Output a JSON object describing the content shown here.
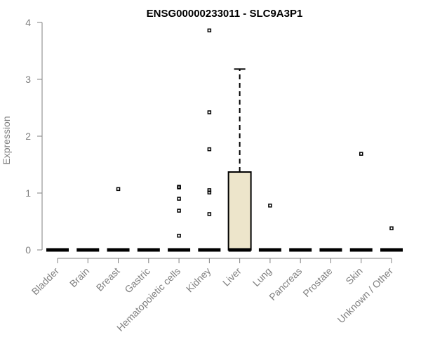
{
  "chart_data": {
    "type": "boxplot",
    "title": "ENSG00000233011 - SLC9A3P1",
    "ylabel": "Expression",
    "xlabel": "",
    "ylim": [
      0,
      4
    ],
    "yticks": [
      0,
      1,
      2,
      3,
      4
    ],
    "grid": false,
    "colors": {
      "box_fill": "#ede5cb",
      "line": "#000000",
      "axis": "#808080"
    },
    "categories": [
      "Bladder",
      "Brain",
      "Breast",
      "Gastric",
      "Hematopoietic cells",
      "Kidney",
      "Liver",
      "Lung",
      "Pancreas",
      "Prostate",
      "Skin",
      "Unknown / Other"
    ],
    "boxes": [
      {
        "category": "Bladder",
        "min": 0,
        "q1": 0,
        "median": 0,
        "q3": 0,
        "max": 0,
        "outliers": []
      },
      {
        "category": "Brain",
        "min": 0,
        "q1": 0,
        "median": 0,
        "q3": 0,
        "max": 0,
        "outliers": []
      },
      {
        "category": "Breast",
        "min": 0,
        "q1": 0,
        "median": 0,
        "q3": 0,
        "max": 0,
        "outliers": [
          1.07
        ]
      },
      {
        "category": "Gastric",
        "min": 0,
        "q1": 0,
        "median": 0,
        "q3": 0,
        "max": 0,
        "outliers": []
      },
      {
        "category": "Hematopoietic cells",
        "min": 0,
        "q1": 0,
        "median": 0,
        "q3": 0,
        "max": 0,
        "outliers": [
          1.1,
          1.11,
          0.9,
          0.69,
          0.25
        ]
      },
      {
        "category": "Kidney",
        "min": 0,
        "q1": 0,
        "median": 0,
        "q3": 0,
        "max": 0,
        "outliers": [
          3.86,
          2.42,
          1.77,
          1.05,
          1.01,
          0.63
        ]
      },
      {
        "category": "Liver",
        "min": 0,
        "q1": 0,
        "median": 0,
        "q3": 1.37,
        "max": 3.18,
        "outliers": []
      },
      {
        "category": "Lung",
        "min": 0,
        "q1": 0,
        "median": 0,
        "q3": 0,
        "max": 0,
        "outliers": [
          0.78
        ]
      },
      {
        "category": "Pancreas",
        "min": 0,
        "q1": 0,
        "median": 0,
        "q3": 0,
        "max": 0,
        "outliers": []
      },
      {
        "category": "Prostate",
        "min": 0,
        "q1": 0,
        "median": 0,
        "q3": 0,
        "max": 0,
        "outliers": []
      },
      {
        "category": "Skin",
        "min": 0,
        "q1": 0,
        "median": 0,
        "q3": 0,
        "max": 0,
        "outliers": [
          1.69
        ]
      },
      {
        "category": "Unknown / Other",
        "min": 0,
        "q1": 0,
        "median": 0,
        "q3": 0,
        "max": 0,
        "outliers": [
          0.38
        ]
      }
    ]
  }
}
